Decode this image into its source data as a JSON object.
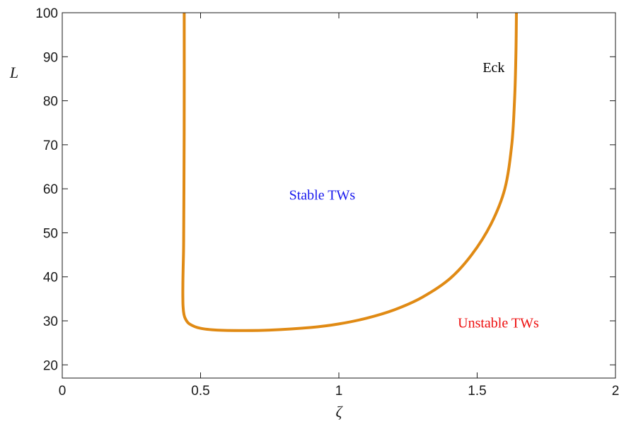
{
  "chart_data": {
    "type": "line",
    "title": "",
    "xlabel": "ζ",
    "ylabel": "L",
    "xlim": [
      0,
      2
    ],
    "ylim": [
      17,
      100
    ],
    "xticks": [
      0,
      0.5,
      1,
      1.5,
      2
    ],
    "xtick_labels": [
      "0",
      "0.5",
      "1",
      "1.5",
      "2"
    ],
    "yticks": [
      20,
      30,
      40,
      50,
      60,
      70,
      80,
      90,
      100
    ],
    "ytick_labels": [
      "20",
      "30",
      "40",
      "50",
      "60",
      "70",
      "80",
      "90",
      "100"
    ],
    "grid": false,
    "series": [
      {
        "color": "#E08A14",
        "x": [
          0.441,
          0.441,
          0.44,
          0.439,
          0.437,
          0.436,
          0.436,
          0.437,
          0.44,
          0.445,
          0.46,
          0.5,
          0.56,
          0.65,
          0.75,
          0.9,
          1.0,
          1.1,
          1.2,
          1.3,
          1.4,
          1.48,
          1.55,
          1.6,
          1.625,
          1.635,
          1.64,
          1.642
        ],
        "y": [
          100,
          80,
          60,
          48,
          42,
          38,
          35,
          33,
          31.5,
          30.5,
          29.3,
          28.3,
          27.9,
          27.8,
          27.9,
          28.5,
          29.3,
          30.6,
          32.5,
          35.3,
          39.5,
          45.0,
          52.0,
          60.0,
          70.0,
          80.0,
          90.0,
          100.0
        ]
      }
    ],
    "annotations": [
      {
        "text": "Eck",
        "x": 1.52,
        "y": 86.5,
        "color": "#000000"
      },
      {
        "text": "Stable TWs",
        "x": 0.82,
        "y": 57.5,
        "color": "#1a1aee"
      },
      {
        "text": "Unstable TWs",
        "x": 1.43,
        "y": 28.5,
        "color": "#ee1111"
      }
    ]
  }
}
